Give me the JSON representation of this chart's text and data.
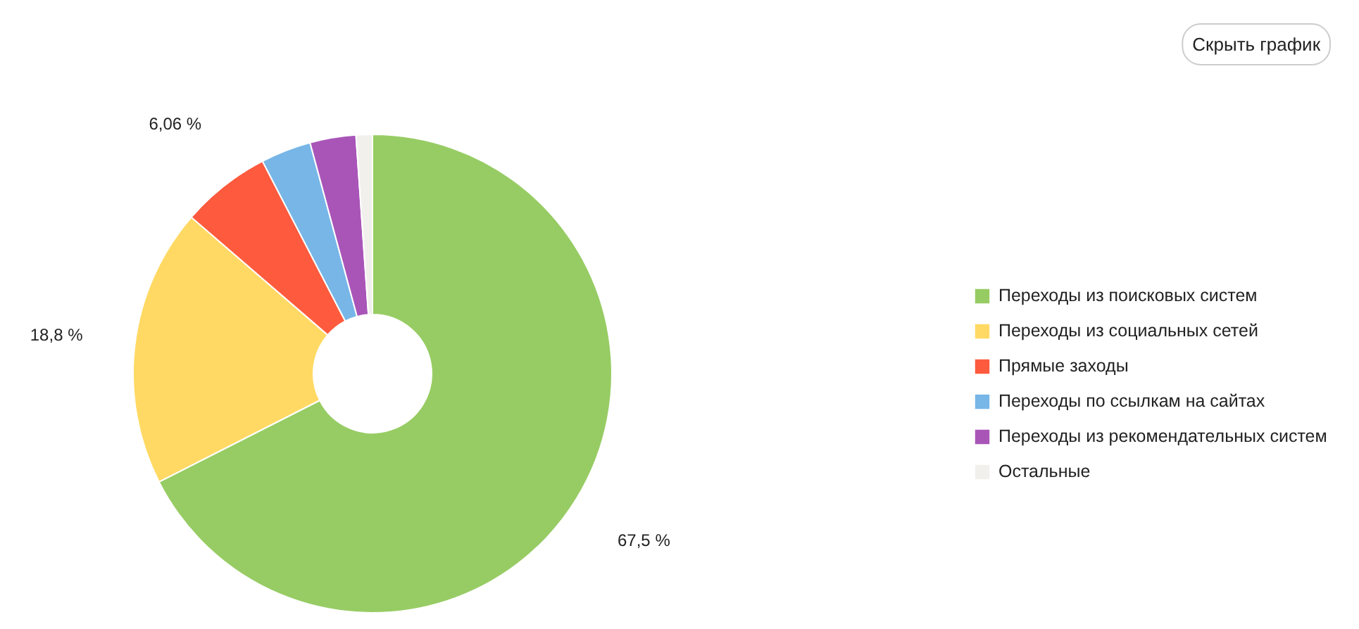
{
  "chart_data": {
    "type": "donut",
    "categories": [
      "Переходы из поисковых систем",
      "Переходы из социальных сетей",
      "Прямые заходы",
      "Переходы по ссылкам на сайтах",
      "Переходы из рекомендательных систем",
      "Остальные"
    ],
    "values": [
      67.5,
      18.8,
      6.06,
      3.4,
      3.1,
      1.1
    ],
    "colors": [
      "#97cc64",
      "#ffd963",
      "#fd5a3e",
      "#77b6e7",
      "#a955b8",
      "#f2f0ed"
    ],
    "value_labels": [
      "67,5 %",
      "18,8 %",
      "6,06 %",
      null,
      null,
      null
    ],
    "legend": "right",
    "annotations": [
      "Скрыть график"
    ]
  }
}
